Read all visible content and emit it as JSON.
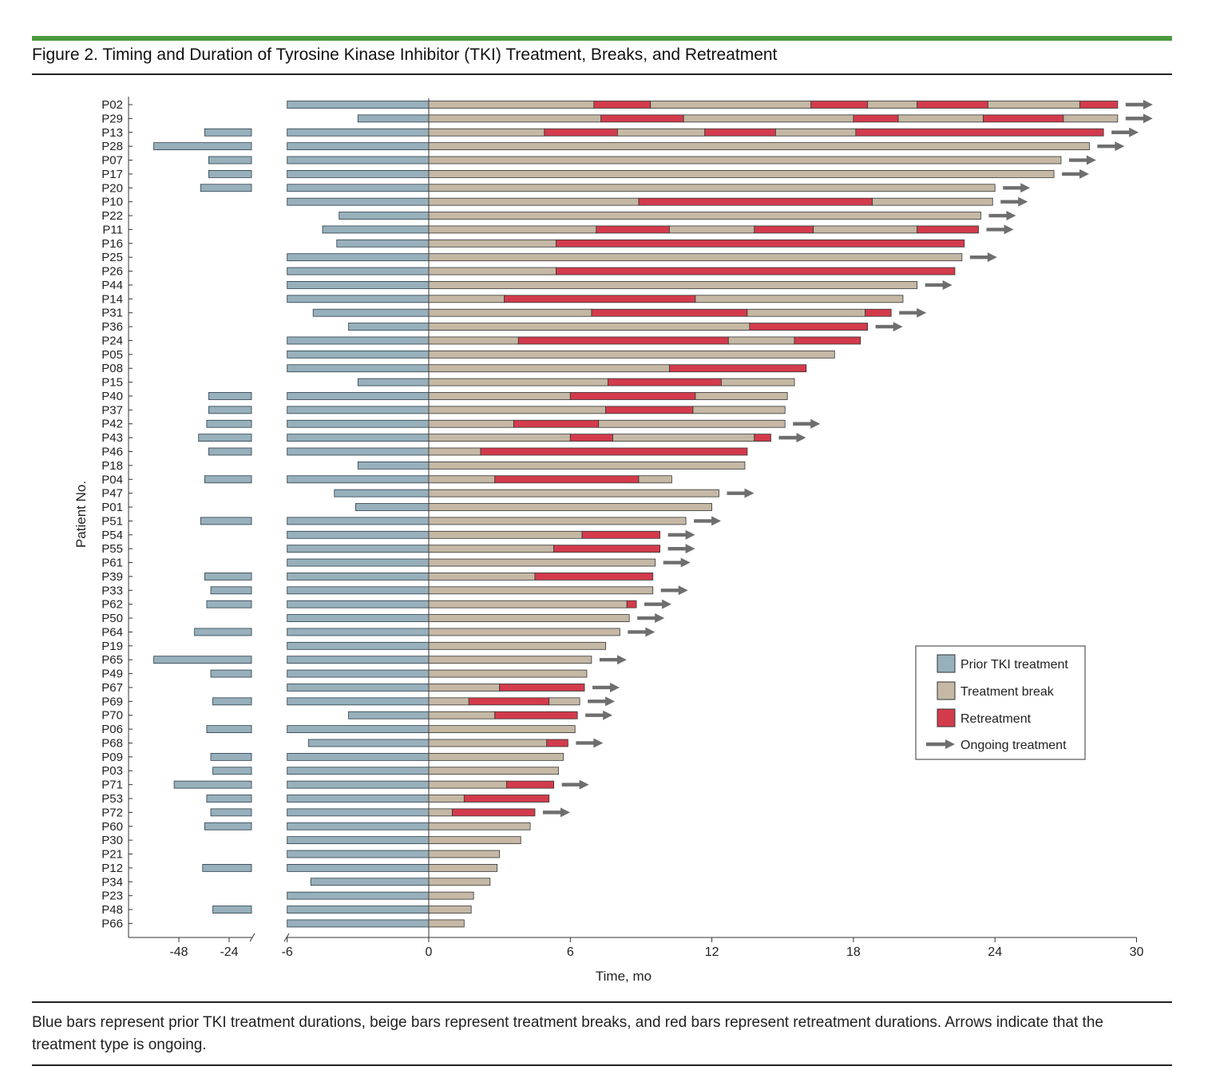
{
  "figure": {
    "title": "Figure 2. Timing and Duration of Tyrosine Kinase Inhibitor (TKI) Treatment, Breaks, and Retreatment",
    "caption": "Blue bars represent prior TKI treatment durations, beige bars represent treatment breaks, and red bars represent retreatment durations. Arrows indicate that the treatment type is ongoing.",
    "accent_color": "#4a9a3c"
  },
  "chart_data": {
    "type": "bar",
    "orientation": "horizontal",
    "xlabel": "Time, mo",
    "ylabel": "Patient No.",
    "x_ticks_left": [
      "-48",
      "-24"
    ],
    "x_ticks_main": [
      "-6",
      "0",
      "6",
      "12",
      "18",
      "24",
      "30"
    ],
    "legend_position": "lower-right",
    "colors": {
      "prior": "#97b0bc",
      "break": "#c5b8a5",
      "retreat": "#d33b4c",
      "arrow": "#6e6e6e"
    },
    "legend": [
      {
        "key": "prior",
        "label": "Prior TKI treatment"
      },
      {
        "key": "break",
        "label": "Treatment break"
      },
      {
        "key": "retreat",
        "label": "Retreatment"
      },
      {
        "key": "arrow",
        "label": "Ongoing treatment"
      }
    ],
    "patients": [
      {
        "id": "P02",
        "prior": -6.0,
        "prior_far": -2,
        "segs": [
          7.0,
          9.4,
          16.2,
          18.6,
          20.7,
          23.7,
          27.6,
          29.2
        ],
        "ongoing": true
      },
      {
        "id": "P29",
        "prior": -3.0,
        "segs": [
          7.3,
          10.8,
          18.0,
          19.9,
          23.5,
          26.9,
          29.2
        ],
        "ongoing": true
      },
      {
        "id": "P13",
        "prior": -6.0,
        "prior_far": -25,
        "segs": [
          4.9,
          8.0,
          11.7,
          14.7,
          18.1,
          28.6
        ],
        "ongoing": true
      },
      {
        "id": "P28",
        "prior": -6.0,
        "prior_far": -50,
        "segs": [
          28.0
        ],
        "ongoing": true
      },
      {
        "id": "P07",
        "prior": -6.0,
        "prior_far": -23,
        "segs": [
          26.8
        ],
        "ongoing": true
      },
      {
        "id": "P17",
        "prior": -6.0,
        "prior_far": -23,
        "segs": [
          26.5
        ],
        "ongoing": true
      },
      {
        "id": "P20",
        "prior": -6.0,
        "prior_far": -27,
        "segs": [
          24.0
        ],
        "ongoing": true
      },
      {
        "id": "P10",
        "prior": -6.0,
        "segs": [
          8.9,
          18.8,
          23.9
        ],
        "ongoing": true
      },
      {
        "id": "P22",
        "prior": -3.8,
        "segs": [
          23.4
        ],
        "ongoing": true
      },
      {
        "id": "P11",
        "prior": -4.5,
        "segs": [
          7.1,
          10.2,
          13.8,
          16.3,
          20.7,
          23.3
        ],
        "ongoing": true
      },
      {
        "id": "P16",
        "prior": -3.9,
        "segs": [
          5.4,
          22.7
        ],
        "ongoing": false
      },
      {
        "id": "P25",
        "prior": -6.0,
        "segs": [
          22.6
        ],
        "ongoing": true
      },
      {
        "id": "P26",
        "prior": -6.0,
        "segs": [
          5.4,
          22.3
        ],
        "ongoing": false
      },
      {
        "id": "P44",
        "prior": -6.0,
        "prior_far": -2,
        "segs": [
          20.7
        ],
        "ongoing": true
      },
      {
        "id": "P14",
        "prior": -6.0,
        "segs": [
          3.2,
          11.3,
          20.1
        ],
        "ongoing": false
      },
      {
        "id": "P31",
        "prior": -4.9,
        "segs": [
          6.9,
          13.5,
          18.5,
          19.6
        ],
        "ongoing": true
      },
      {
        "id": "P36",
        "prior": -3.4,
        "segs": [
          13.6,
          18.6
        ],
        "ongoing": true
      },
      {
        "id": "P24",
        "prior": -6.0,
        "segs": [
          3.8,
          12.7,
          15.5,
          18.3
        ],
        "ongoing": false
      },
      {
        "id": "P05",
        "prior": -6.0,
        "segs": [
          17.2
        ],
        "ongoing": false
      },
      {
        "id": "P08",
        "prior": -6.0,
        "segs": [
          10.2,
          16.0
        ],
        "ongoing": false
      },
      {
        "id": "P15",
        "prior": -3.0,
        "segs": [
          7.6,
          12.4,
          15.5
        ],
        "ongoing": false
      },
      {
        "id": "P40",
        "prior": -6.0,
        "prior_far": -23,
        "segs": [
          6.0,
          11.3,
          15.2
        ],
        "ongoing": false
      },
      {
        "id": "P37",
        "prior": -6.0,
        "prior_far": -23,
        "segs": [
          7.5,
          11.2,
          15.1
        ],
        "ongoing": false
      },
      {
        "id": "P42",
        "prior": -6.0,
        "prior_far": -24,
        "segs": [
          3.6,
          7.2,
          15.1
        ],
        "ongoing": true
      },
      {
        "id": "P43",
        "prior": -6.0,
        "prior_far": -28,
        "segs": [
          6.0,
          7.8,
          13.8,
          14.5
        ],
        "ongoing": true
      },
      {
        "id": "P46",
        "prior": -6.0,
        "prior_far": -23,
        "segs": [
          2.2,
          13.5
        ],
        "ongoing": false
      },
      {
        "id": "P18",
        "prior": -3.0,
        "segs": [
          13.4
        ],
        "ongoing": false
      },
      {
        "id": "P04",
        "prior": -6.0,
        "prior_far": -25,
        "segs": [
          2.8,
          8.9,
          10.3
        ],
        "ongoing": false
      },
      {
        "id": "P47",
        "prior": -4.0,
        "segs": [
          12.3
        ],
        "ongoing": true
      },
      {
        "id": "P01",
        "prior": -3.1,
        "segs": [
          12.0
        ],
        "ongoing": false
      },
      {
        "id": "P51",
        "prior": -6.0,
        "prior_far": -27,
        "segs": [
          10.9
        ],
        "ongoing": true
      },
      {
        "id": "P54",
        "prior": -6.0,
        "segs": [
          6.5,
          9.8
        ],
        "ongoing": true
      },
      {
        "id": "P55",
        "prior": -6.0,
        "segs": [
          5.3,
          9.8
        ],
        "ongoing": true
      },
      {
        "id": "P61",
        "prior": -6.0,
        "segs": [
          9.6
        ],
        "ongoing": true
      },
      {
        "id": "P39",
        "prior": -6.0,
        "prior_far": -25,
        "segs": [
          4.5,
          9.5
        ],
        "ongoing": false
      },
      {
        "id": "P33",
        "prior": -6.0,
        "prior_far": -22,
        "segs": [
          9.5
        ],
        "ongoing": true
      },
      {
        "id": "P62",
        "prior": -6.0,
        "prior_far": -24,
        "segs": [
          8.4,
          8.8
        ],
        "ongoing": true
      },
      {
        "id": "P50",
        "prior": -6.0,
        "segs": [
          8.5
        ],
        "ongoing": true
      },
      {
        "id": "P64",
        "prior": -6.0,
        "prior_far": -30,
        "segs": [
          8.1
        ],
        "ongoing": true
      },
      {
        "id": "P19",
        "prior": -6.0,
        "segs": [
          7.5
        ],
        "ongoing": false
      },
      {
        "id": "P65",
        "prior": -6.0,
        "prior_far": -50,
        "segs": [
          6.9
        ],
        "ongoing": true
      },
      {
        "id": "P49",
        "prior": -6.0,
        "prior_far": -22,
        "segs": [
          6.7
        ],
        "ongoing": false
      },
      {
        "id": "P67",
        "prior": -6.0,
        "segs": [
          3.0,
          6.6
        ],
        "ongoing": true
      },
      {
        "id": "P69",
        "prior": -6.0,
        "prior_far": -21,
        "segs": [
          1.7,
          5.1,
          6.4
        ],
        "ongoing": true
      },
      {
        "id": "P70",
        "prior": -3.4,
        "segs": [
          2.8,
          6.3
        ],
        "ongoing": true
      },
      {
        "id": "P06",
        "prior": -6.0,
        "prior_far": -24,
        "segs": [
          6.2
        ],
        "ongoing": false
      },
      {
        "id": "P68",
        "prior": -5.1,
        "segs": [
          5.0,
          5.9
        ],
        "ongoing": true
      },
      {
        "id": "P09",
        "prior": -6.0,
        "prior_far": -22,
        "segs": [
          5.7
        ],
        "ongoing": false
      },
      {
        "id": "P03",
        "prior": -6.0,
        "prior_far": -21,
        "segs": [
          5.5
        ],
        "ongoing": false
      },
      {
        "id": "P71",
        "prior": -6.0,
        "prior_far": -40,
        "segs": [
          3.3,
          5.3
        ],
        "ongoing": true
      },
      {
        "id": "P53",
        "prior": -6.0,
        "prior_far": -24,
        "segs": [
          1.5,
          5.1
        ],
        "ongoing": false
      },
      {
        "id": "P72",
        "prior": -6.0,
        "prior_far": -22,
        "segs": [
          1.0,
          4.5
        ],
        "ongoing": true
      },
      {
        "id": "P60",
        "prior": -6.0,
        "prior_far": -25,
        "segs": [
          4.3
        ],
        "ongoing": false
      },
      {
        "id": "P30",
        "prior": -6.0,
        "segs": [
          3.9
        ],
        "ongoing": false
      },
      {
        "id": "P21",
        "prior": -6.0,
        "segs": [
          3.0
        ],
        "ongoing": false
      },
      {
        "id": "P12",
        "prior": -6.0,
        "prior_far": -26,
        "segs": [
          2.9
        ],
        "ongoing": false
      },
      {
        "id": "P34",
        "prior": -5.0,
        "segs": [
          2.6
        ],
        "ongoing": false
      },
      {
        "id": "P23",
        "prior": -6.0,
        "segs": [
          1.9
        ],
        "ongoing": false
      },
      {
        "id": "P48",
        "prior": -6.0,
        "prior_far": -21,
        "segs": [
          1.8
        ],
        "ongoing": false
      },
      {
        "id": "P66",
        "prior": -6.0,
        "segs": [
          1.5
        ],
        "ongoing": false
      }
    ]
  }
}
